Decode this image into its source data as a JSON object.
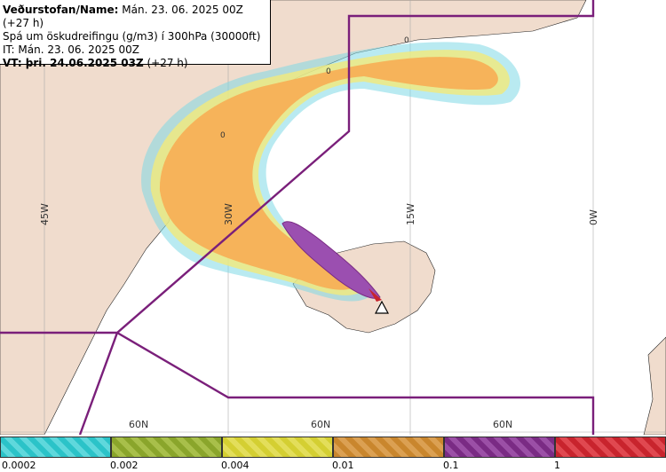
{
  "header": {
    "line1_label": "Veðurstofan/Name:",
    "line1_value": " Mán. 23. 06. 2025 00Z (+27 h)",
    "line2": "Spá um öskudreifingu (g/m3) í 300hPa (30000ft)",
    "line3": "IT: Mán. 23. 06. 2025 00Z",
    "line4_label": "VT: þri. 24.06.2025 03Z",
    "line4_value": " (+27 h)"
  },
  "map": {
    "longitude_labels": [
      "45W",
      "30W",
      "15W",
      "0W"
    ],
    "latitude_labels": [
      "60N",
      "60N",
      "60N"
    ],
    "contour_labels": [
      "0",
      "0",
      "0"
    ],
    "volcano_icon": "volcano-triangle-icon"
  },
  "legend": {
    "colors": [
      "#2bc3c8",
      "#8aa52b",
      "#d4cf32",
      "#c9862d",
      "#7a2b84",
      "#c8242d"
    ],
    "ticks": [
      "0.0002",
      "0.002",
      "0.004",
      "0.01",
      "0.1",
      "1"
    ]
  }
}
